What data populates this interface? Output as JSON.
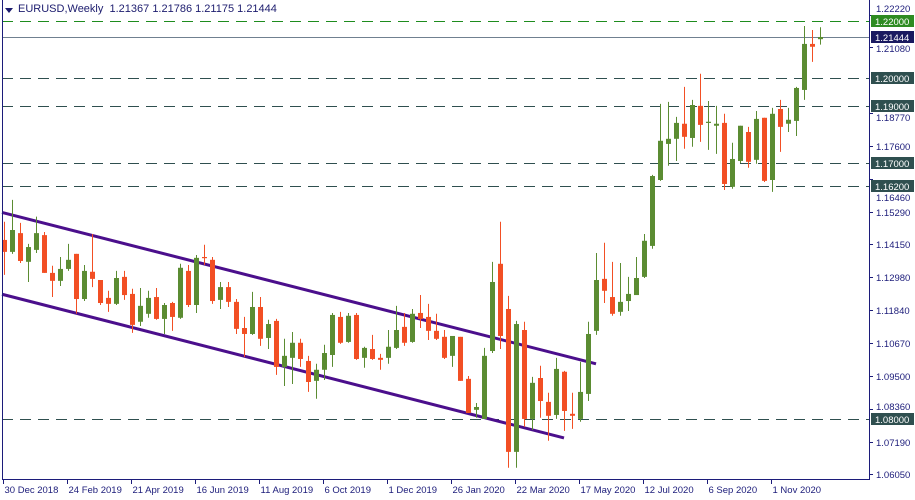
{
  "header": {
    "symbol_timeframe": "EURUSD,Weekly",
    "ohlc": "1.21367 1.21786 1.21175 1.21444"
  },
  "colors": {
    "bull": "#5b8c32",
    "bear": "#f24f24",
    "channel": "#4b0f8c",
    "level_line": "#2f4f4f",
    "level_line_top": "#1e8c1e",
    "bid_line": "#708090",
    "bid_label": "#191960",
    "axis": "#1c1c7a"
  },
  "chart_data": {
    "type": "candlestick",
    "symbol": "EURUSD",
    "timeframe": "Weekly",
    "ylim": [
      1.0588,
      1.2275
    ],
    "grid": false,
    "candles_format": [
      "date",
      "open",
      "high",
      "low",
      "close"
    ],
    "candles": [
      [
        "2018-12-30",
        1.143,
        1.1494,
        1.1307,
        1.1388
      ],
      [
        "2019-01-06",
        1.1388,
        1.1571,
        1.1381,
        1.1465
      ],
      [
        "2019-01-13",
        1.1454,
        1.149,
        1.1349,
        1.1356
      ],
      [
        "2019-01-20",
        1.1353,
        1.1416,
        1.1282,
        1.1405
      ],
      [
        "2019-01-27",
        1.1395,
        1.1512,
        1.1384,
        1.1454
      ],
      [
        "2019-02-03",
        1.1447,
        1.1458,
        1.1314,
        1.1314
      ],
      [
        "2019-02-10",
        1.1314,
        1.1339,
        1.1229,
        1.1286
      ],
      [
        "2019-02-17",
        1.1286,
        1.137,
        1.1268,
        1.1328
      ],
      [
        "2019-02-24",
        1.1328,
        1.1416,
        1.1321,
        1.136
      ],
      [
        "2019-03-03",
        1.1381,
        1.1381,
        1.117,
        1.1222
      ],
      [
        "2019-03-10",
        1.1222,
        1.1342,
        1.1215,
        1.1321
      ],
      [
        "2019-03-17",
        1.1318,
        1.1451,
        1.1264,
        1.1293
      ],
      [
        "2019-03-24",
        1.1289,
        1.1289,
        1.1201,
        1.1208
      ],
      [
        "2019-03-31",
        1.1226,
        1.1251,
        1.1177,
        1.1205
      ],
      [
        "2019-04-07",
        1.1205,
        1.1321,
        1.1201,
        1.1296
      ],
      [
        "2019-04-14",
        1.13,
        1.1321,
        1.1219,
        1.1236
      ],
      [
        "2019-04-21",
        1.124,
        1.1258,
        1.1103,
        1.1131
      ],
      [
        "2019-04-28",
        1.1142,
        1.1261,
        1.1127,
        1.1198
      ],
      [
        "2019-05-05",
        1.117,
        1.1251,
        1.1156,
        1.1226
      ],
      [
        "2019-05-12",
        1.1229,
        1.1261,
        1.1149,
        1.1152
      ],
      [
        "2019-05-19",
        1.1152,
        1.1208,
        1.1099,
        1.1201
      ],
      [
        "2019-05-26",
        1.1208,
        1.1212,
        1.111,
        1.1159
      ],
      [
        "2019-06-02",
        1.1156,
        1.1346,
        1.1152,
        1.1332
      ],
      [
        "2019-06-09",
        1.1321,
        1.1342,
        1.1194,
        1.1201
      ],
      [
        "2019-06-16",
        1.1201,
        1.1377,
        1.1173,
        1.1367
      ],
      [
        "2019-06-23",
        1.137,
        1.1413,
        1.1342,
        1.1367
      ],
      [
        "2019-06-30",
        1.136,
        1.137,
        1.1205,
        1.1215
      ],
      [
        "2019-07-07",
        1.1219,
        1.1282,
        1.1187,
        1.1264
      ],
      [
        "2019-07-14",
        1.1264,
        1.1282,
        1.1194,
        1.1212
      ],
      [
        "2019-07-21",
        1.1212,
        1.1222,
        1.1099,
        1.1117
      ],
      [
        "2019-07-28",
        1.112,
        1.1159,
        1.1018,
        1.1099
      ],
      [
        "2019-08-04",
        1.1099,
        1.1247,
        1.1096,
        1.1194
      ],
      [
        "2019-08-11",
        1.1194,
        1.1229,
        1.1057,
        1.1082
      ],
      [
        "2019-08-18",
        1.1085,
        1.1149,
        1.1046,
        1.1134
      ],
      [
        "2019-08-25",
        1.1145,
        1.1152,
        1.0955,
        1.0983
      ],
      [
        "2019-09-01",
        1.0983,
        1.1082,
        1.0916,
        1.1022
      ],
      [
        "2019-09-08",
        1.1015,
        1.1106,
        1.0923,
        1.1068
      ],
      [
        "2019-09-15",
        1.1068,
        1.1082,
        1.0983,
        1.1011
      ],
      [
        "2019-09-22",
        1.1004,
        1.1022,
        1.0895,
        1.093
      ],
      [
        "2019-09-29",
        1.0934,
        1.0994,
        1.0871,
        1.0973
      ],
      [
        "2019-10-06",
        1.0973,
        1.1061,
        1.0937,
        1.1032
      ],
      [
        "2019-10-13",
        1.1025,
        1.1173,
        1.0983,
        1.1166
      ],
      [
        "2019-10-20",
        1.1159,
        1.1177,
        1.1064,
        1.1068
      ],
      [
        "2019-10-27",
        1.1071,
        1.1173,
        1.1068,
        1.1163
      ],
      [
        "2019-11-03",
        1.1166,
        1.1173,
        1.1008,
        1.1011
      ],
      [
        "2019-11-10",
        1.1015,
        1.1054,
        1.098,
        1.105
      ],
      [
        "2019-11-17",
        1.1046,
        1.1096,
        1.1008,
        1.1011
      ],
      [
        "2019-11-24",
        1.1015,
        1.1029,
        1.0973,
        1.1008
      ],
      [
        "2019-12-01",
        1.1015,
        1.1113,
        1.0994,
        1.1054
      ],
      [
        "2019-12-08",
        1.105,
        1.1198,
        1.1046,
        1.1113
      ],
      [
        "2019-12-15",
        1.1124,
        1.1173,
        1.1057,
        1.1068
      ],
      [
        "2019-12-22",
        1.1071,
        1.1187,
        1.1068,
        1.117
      ],
      [
        "2019-12-29",
        1.1173,
        1.1236,
        1.112,
        1.1152
      ],
      [
        "2020-01-05",
        1.1159,
        1.1205,
        1.1078,
        1.111
      ],
      [
        "2020-01-12",
        1.111,
        1.117,
        1.1078,
        1.1082
      ],
      [
        "2020-01-19",
        1.1089,
        1.1113,
        1.1011,
        1.1015
      ],
      [
        "2020-01-26",
        1.1022,
        1.1092,
        1.0983,
        1.1092
      ],
      [
        "2020-02-02",
        1.1089,
        1.1089,
        1.0934,
        1.0934
      ],
      [
        "2020-02-09",
        1.0941,
        1.0951,
        1.0821,
        1.0821
      ],
      [
        "2020-02-16",
        1.0832,
        1.0856,
        1.0804,
        1.0842
      ],
      [
        "2020-02-23",
        1.08,
        1.105,
        1.08,
        1.1022
      ],
      [
        "2020-03-01",
        1.1039,
        1.1353,
        1.1032,
        1.1282
      ],
      [
        "2020-03-08",
        1.1346,
        1.1494,
        1.1046,
        1.1092
      ],
      [
        "2020-03-15",
        1.1187,
        1.1233,
        1.0628,
        1.0684
      ],
      [
        "2020-03-22",
        1.0684,
        1.1145,
        1.0628,
        1.1134
      ],
      [
        "2020-03-29",
        1.1113,
        1.1142,
        1.0772,
        1.08
      ],
      [
        "2020-04-05",
        1.08,
        1.0948,
        1.0761,
        1.0927
      ],
      [
        "2020-04-12",
        1.0944,
        1.0987,
        1.0804,
        1.0863
      ],
      [
        "2020-04-19",
        1.086,
        1.0892,
        1.0723,
        1.0811
      ],
      [
        "2020-04-26",
        1.0814,
        1.1015,
        1.08,
        1.0976
      ],
      [
        "2020-05-03",
        1.0966,
        1.0969,
        1.0758,
        1.0828
      ],
      [
        "2020-05-10",
        1.0818,
        1.0892,
        1.0765,
        1.0811
      ],
      [
        "2020-05-17",
        1.08,
        1.1001,
        1.079,
        1.0895
      ],
      [
        "2020-05-24",
        1.0888,
        1.1142,
        1.0863,
        1.1099
      ],
      [
        "2020-05-31",
        1.111,
        1.1384,
        1.1096,
        1.1289
      ],
      [
        "2020-06-07",
        1.1293,
        1.142,
        1.1208,
        1.1251
      ],
      [
        "2020-06-14",
        1.1229,
        1.1353,
        1.1163,
        1.117
      ],
      [
        "2020-06-21",
        1.1177,
        1.1349,
        1.1163,
        1.1212
      ],
      [
        "2020-06-28",
        1.1215,
        1.13,
        1.118,
        1.124
      ],
      [
        "2020-07-05",
        1.1236,
        1.137,
        1.1236,
        1.1296
      ],
      [
        "2020-07-12",
        1.13,
        1.1451,
        1.1296,
        1.1427
      ],
      [
        "2020-07-19",
        1.1409,
        1.1659,
        1.1399,
        1.1655
      ],
      [
        "2020-07-26",
        1.1641,
        1.1909,
        1.1638,
        1.1779
      ],
      [
        "2020-08-02",
        1.1768,
        1.1916,
        1.1691,
        1.1786
      ],
      [
        "2020-08-09",
        1.1786,
        1.1863,
        1.1708,
        1.1842
      ],
      [
        "2020-08-16",
        1.1839,
        1.1969,
        1.1751,
        1.1793
      ],
      [
        "2020-08-23",
        1.1789,
        1.1923,
        1.1758,
        1.1905
      ],
      [
        "2020-08-30",
        1.1902,
        1.2015,
        1.1775,
        1.1835
      ],
      [
        "2020-09-06",
        1.1842,
        1.1919,
        1.1747,
        1.1846
      ],
      [
        "2020-09-13",
        1.1832,
        1.1902,
        1.1733,
        1.1839
      ],
      [
        "2020-09-20",
        1.1842,
        1.1874,
        1.1606,
        1.1627
      ],
      [
        "2020-09-27",
        1.1617,
        1.1772,
        1.161,
        1.1715
      ],
      [
        "2020-10-04",
        1.1708,
        1.1832,
        1.1701,
        1.1832
      ],
      [
        "2020-10-11",
        1.181,
        1.1828,
        1.1684,
        1.1705
      ],
      [
        "2020-10-18",
        1.1712,
        1.1884,
        1.1698,
        1.1856
      ],
      [
        "2020-10-25",
        1.186,
        1.186,
        1.1634,
        1.1638
      ],
      [
        "2020-11-01",
        1.1641,
        1.1895,
        1.1599,
        1.1874
      ],
      [
        "2020-11-08",
        1.1891,
        1.1923,
        1.174,
        1.1828
      ],
      [
        "2020-11-15",
        1.1839,
        1.1895,
        1.181,
        1.1853
      ],
      [
        "2020-11-22",
        1.1849,
        1.1969,
        1.1796,
        1.1965
      ],
      [
        "2020-11-29",
        1.1958,
        1.2183,
        1.1923,
        1.212
      ],
      [
        "2020-12-06",
        1.212,
        1.2169,
        1.2057,
        1.211
      ],
      [
        "2020-12-13",
        1.21367,
        1.21786,
        1.21175,
        1.21444
      ]
    ],
    "x_tick_labels": [
      {
        "date": "2018-12-30",
        "label": "30 Dec 2018"
      },
      {
        "date": "2019-02-24",
        "label": "24 Feb 2019"
      },
      {
        "date": "2019-04-21",
        "label": "21 Apr 2019"
      },
      {
        "date": "2019-06-16",
        "label": "16 Jun 2019"
      },
      {
        "date": "2019-08-11",
        "label": "11 Aug 2019"
      },
      {
        "date": "2019-10-06",
        "label": "6 Oct 2019"
      },
      {
        "date": "2019-12-01",
        "label": "1 Dec 2019"
      },
      {
        "date": "2020-01-26",
        "label": "26 Jan 2020"
      },
      {
        "date": "2020-03-22",
        "label": "22 Mar 2020"
      },
      {
        "date": "2020-05-17",
        "label": "17 May 2020"
      },
      {
        "date": "2020-07-12",
        "label": "12 Jul 2020"
      },
      {
        "date": "2020-09-06",
        "label": "6 Sep 2020"
      },
      {
        "date": "2020-11-01",
        "label": "1 Nov 2020"
      }
    ],
    "y_tick_labels": [
      "1.22220",
      "1.21080",
      "1.18770",
      "1.17600",
      "1.16460",
      "1.15290",
      "1.14150",
      "1.12980",
      "1.11840",
      "1.10670",
      "1.09500",
      "1.08360",
      "1.07190",
      "1.06050"
    ],
    "horizontal_levels": [
      {
        "price": 1.22,
        "label": "1.22000",
        "style": "dashed",
        "color": "#1e8c1e",
        "label_bg": "#2e8b22"
      },
      {
        "price": 1.2,
        "label": "1.20000",
        "style": "dashed",
        "color": "#2f4f4f",
        "label_bg": "#2f4f4f"
      },
      {
        "price": 1.19,
        "label": "1.19000",
        "style": "dashed",
        "color": "#2f4f4f",
        "label_bg": "#2f4f4f"
      },
      {
        "price": 1.17,
        "label": "1.17000",
        "style": "dashed",
        "color": "#2f4f4f",
        "label_bg": "#2f4f4f"
      },
      {
        "price": 1.162,
        "label": "1.16200",
        "style": "dashed",
        "color": "#2f4f4f",
        "label_bg": "#2f4f4f"
      },
      {
        "price": 1.08,
        "label": "1.08000",
        "style": "dashed",
        "color": "#2f4f4f",
        "label_bg": "#2f4f4f"
      }
    ],
    "bid_line": {
      "price": 1.21444,
      "label": "1.21444"
    },
    "trendlines": [
      {
        "name": "",
        "from": {
          "date": "2018-12-30",
          "price": 1.1525
        },
        "to": {
          "date": "2020-05-31",
          "price": 1.0994
        }
      },
      {
        "name": "",
        "from": {
          "date": "2018-12-30",
          "price": 1.1237
        },
        "to": {
          "date": "2020-05-03",
          "price": 1.0733
        }
      }
    ]
  }
}
